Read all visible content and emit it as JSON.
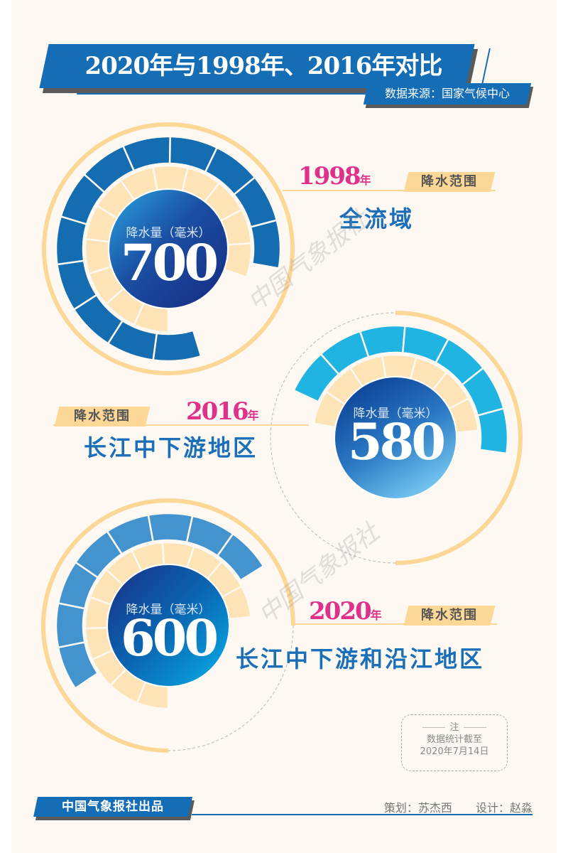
{
  "header": {
    "title": "2020年与1998年、2016年对比",
    "source": "数据来源：国家气候中心"
  },
  "labels": {
    "center_label": "降水量（毫米）",
    "tag": "降水范围",
    "year_suffix": "年"
  },
  "colors": {
    "background": "#fdf8f2",
    "brand_blue": "#156db5",
    "ring_yellow": "#fcd795",
    "tan": "#fde3b5",
    "year_pink": "#e0318a",
    "region_blue": "#1a6fb8"
  },
  "chart_data": {
    "type": "radial-bar",
    "title": "2020年与1998年、2016年对比",
    "unit": "降水量（毫米）",
    "series": [
      {
        "year": "1998",
        "value": 700,
        "scope": "全流域",
        "ring_color": "#146db1"
      },
      {
        "year": "2016",
        "value": 580,
        "scope": "长江中下游地区",
        "ring_color": "#20b4e2"
      },
      {
        "year": "2020",
        "value": 600,
        "scope": "长江中下游和沿江地区",
        "ring_color": "#4393cf"
      }
    ]
  },
  "charts": [
    {
      "year": "1998",
      "value": "700",
      "scope": "全流域"
    },
    {
      "year": "2016",
      "value": "580",
      "scope": "长江中下游地区"
    },
    {
      "year": "2020",
      "value": "600",
      "scope": "长江中下游和沿江地区"
    }
  ],
  "note": {
    "title": "注",
    "line1": "数据统计截至",
    "line2": "2020年7月14日"
  },
  "footer": {
    "publisher": "中国气象报社出品",
    "planner": "策划：苏杰西",
    "designer": "设计：赵淼"
  },
  "watermark": "中国气象报社"
}
